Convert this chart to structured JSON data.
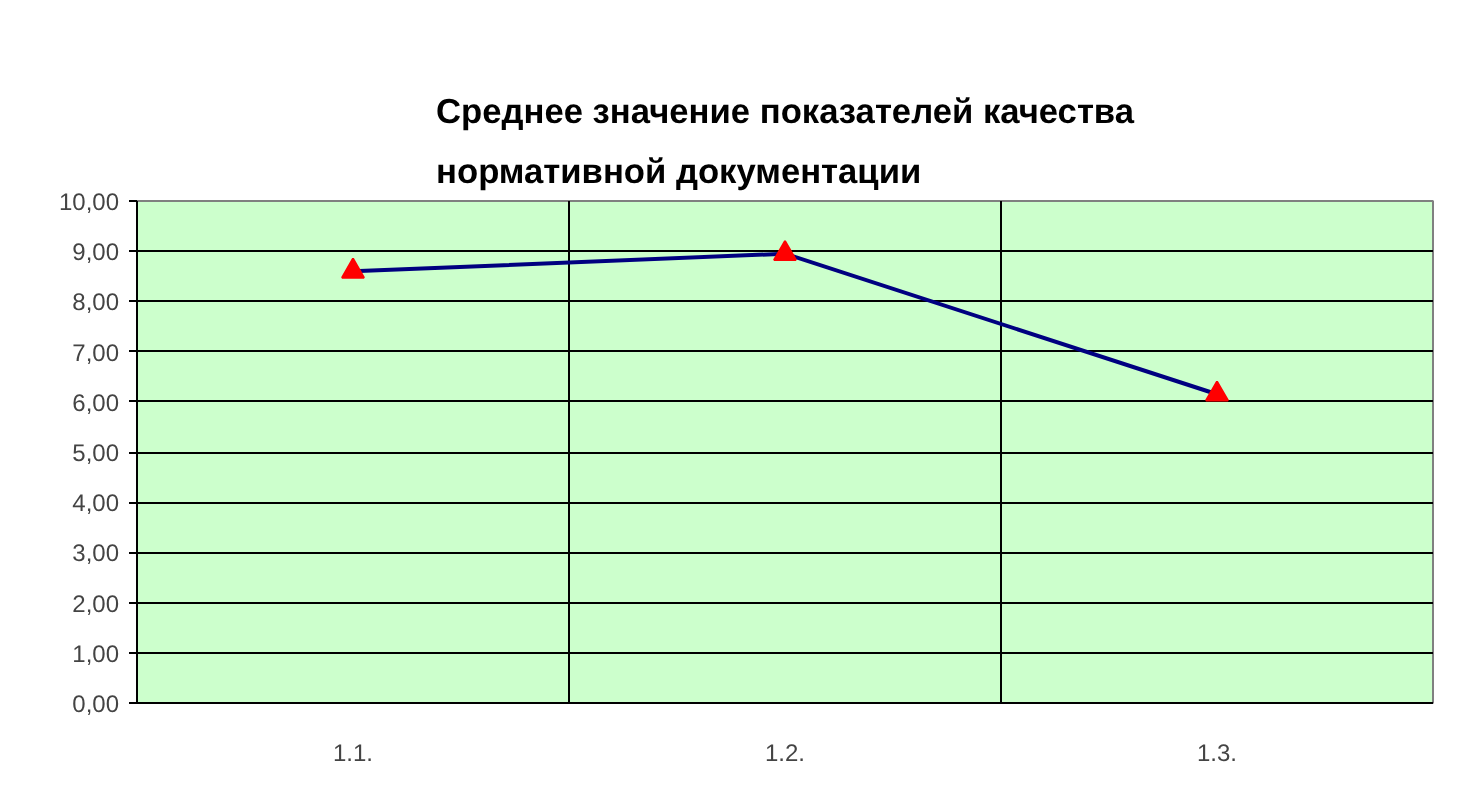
{
  "chart_data": {
    "type": "line",
    "title": "Среднее значение показателей качества нормативной документации",
    "categories": [
      "1.1.",
      "1.2.",
      "1.3."
    ],
    "series": [
      {
        "color": "#000080",
        "colors": [
          "#ff0000",
          "#ff0000",
          "#ff0000"
        ],
        "values": [
          8.6,
          8.95,
          6.15
        ]
      }
    ],
    "marker": "triangle",
    "ylim": [
      0,
      10
    ],
    "yticks": [
      {
        "value": 0,
        "label": "0,00"
      },
      {
        "value": 1,
        "label": "1,00"
      },
      {
        "value": 2,
        "label": "2,00"
      },
      {
        "value": 3,
        "label": "3,00"
      },
      {
        "value": 4,
        "label": "4,00"
      },
      {
        "value": 5,
        "label": "5,00"
      },
      {
        "value": 6,
        "label": "6,00"
      },
      {
        "value": 7,
        "label": "7,00"
      },
      {
        "value": 8,
        "label": "8,00"
      },
      {
        "value": 9,
        "label": "9,00"
      },
      {
        "value": 10,
        "label": "10,00"
      }
    ],
    "grid": true
  }
}
